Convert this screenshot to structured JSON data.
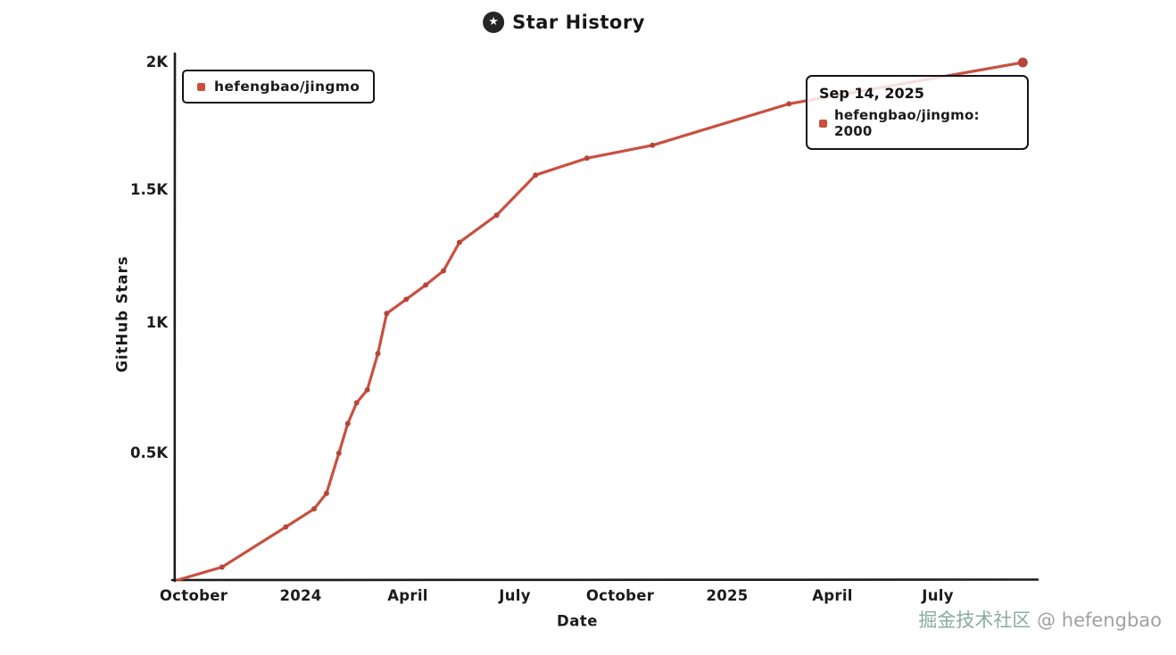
{
  "header": {
    "logo_icon": "star-icon",
    "logo_glyph": "★",
    "title": "Star History"
  },
  "legend": {
    "label": "hefengbao/jingmo"
  },
  "tooltip": {
    "date": "Sep 14, 2025",
    "entry": "hefengbao/jingmo: 2000"
  },
  "watermark": {
    "community": "掘金技术社区",
    "handle": " @ hefengbao"
  },
  "colors": {
    "series_red": "#c9503f",
    "marker_red": "#b5463a",
    "axis_black": "#1c1c1c",
    "watermark_gray": "#97999b"
  },
  "chart_data": {
    "type": "line",
    "title": "Star History",
    "xlabel": "Date",
    "ylabel": "GitHub Stars",
    "x_tick_labels": [
      "October",
      "2024",
      "April",
      "July",
      "October",
      "2025",
      "April",
      "July"
    ],
    "x_tick_month_offsets": [
      0,
      3,
      6,
      9,
      12,
      15,
      18,
      21
    ],
    "x_unit": "months from the October 2023 tick",
    "y_tick_labels": [
      "2K",
      "1.5K",
      "1K",
      "0.5K"
    ],
    "y_tick_values": [
      2000,
      1500,
      1000,
      500
    ],
    "ylim": [
      0,
      2000
    ],
    "grid": false,
    "legend_position": "top-left",
    "series": [
      {
        "name": "hefengbao/jingmo",
        "color": "#c9503f",
        "marker_color": "#b5463a",
        "points_format": "[months_since_oct_2023, stars]",
        "points": [
          [
            -0.45,
            0
          ],
          [
            0.8,
            50
          ],
          [
            2.6,
            205
          ],
          [
            3.4,
            275
          ],
          [
            3.75,
            335
          ],
          [
            4.1,
            490
          ],
          [
            4.35,
            605
          ],
          [
            4.6,
            685
          ],
          [
            4.9,
            735
          ],
          [
            5.2,
            875
          ],
          [
            5.45,
            1030
          ],
          [
            6.0,
            1085
          ],
          [
            6.55,
            1140
          ],
          [
            7.05,
            1195
          ],
          [
            7.5,
            1305
          ],
          [
            8.55,
            1410
          ],
          [
            9.65,
            1565
          ],
          [
            11.1,
            1630
          ],
          [
            12.95,
            1680
          ],
          [
            16.8,
            1840
          ],
          [
            23.4,
            2000
          ]
        ]
      }
    ],
    "final_point": {
      "date": "Sep 14, 2025",
      "value": 2000
    }
  }
}
